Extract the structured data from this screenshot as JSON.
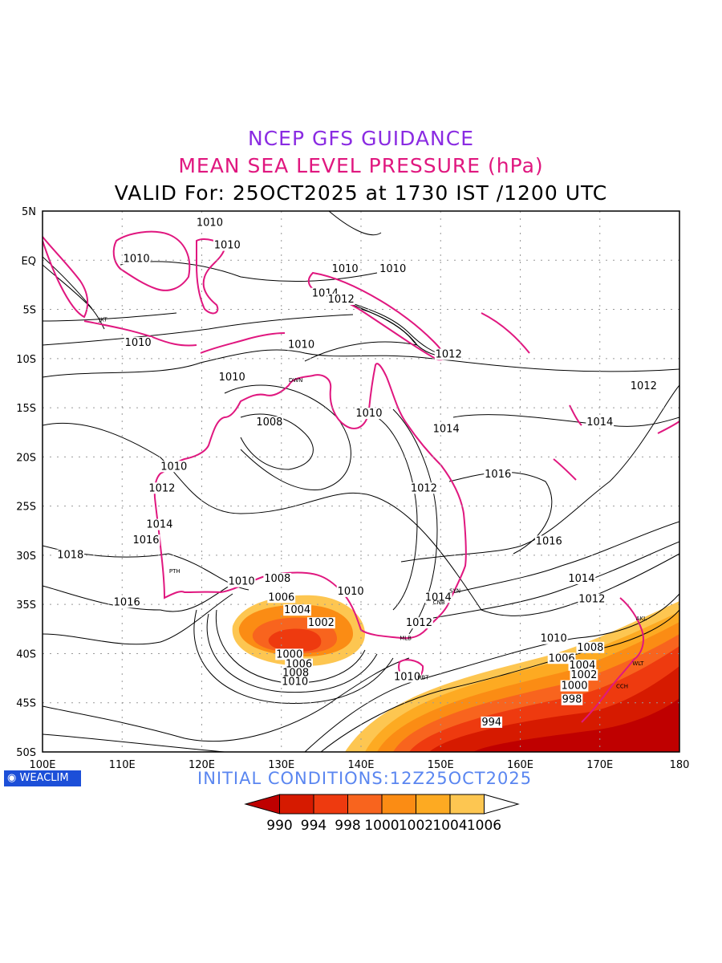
{
  "header": {
    "title": "NCEP GFS GUIDANCE",
    "subtitle": "MEAN SEA LEVEL PRESSURE (hPa)",
    "valid_line": "VALID For: 25OCT2025 at 1730 IST /1200 UTC"
  },
  "colors": {
    "title": "#8a2be2",
    "subtitle": "#e0177f",
    "coast": "#e0177f",
    "init": "#5a86f0",
    "badge": "#1c4fd8",
    "fills": [
      "#bf0000",
      "#d61a00",
      "#ee3a0f",
      "#f8641e",
      "#fb8c14",
      "#fdaa22",
      "#fdc651",
      "#ffffff"
    ]
  },
  "axes": {
    "lat_labels": [
      "5N",
      "EQ",
      "5S",
      "10S",
      "15S",
      "20S",
      "25S",
      "30S",
      "35S",
      "40S",
      "45S",
      "50S"
    ],
    "lon_labels": [
      "100E",
      "110E",
      "120E",
      "130E",
      "140E",
      "150E",
      "160E",
      "170E",
      "180"
    ]
  },
  "contour_labels": [
    {
      "text": "1010",
      "lon": 121.0,
      "lat": 3.5
    },
    {
      "text": "1010",
      "lon": 123.2,
      "lat": 1.2
    },
    {
      "text": "1010",
      "lon": 111.8,
      "lat": -0.2
    },
    {
      "text": "1010",
      "lon": 144.0,
      "lat": -1.2
    },
    {
      "text": "1010",
      "lon": 138.0,
      "lat": -1.2
    },
    {
      "text": "1014",
      "lon": 135.5,
      "lat": -3.7
    },
    {
      "text": "1012",
      "lon": 137.5,
      "lat": -4.3
    },
    {
      "text": "1010",
      "lon": 112.0,
      "lat": -8.7
    },
    {
      "text": "1010",
      "lon": 132.5,
      "lat": -8.9
    },
    {
      "text": "1012",
      "lon": 151.0,
      "lat": -9.9
    },
    {
      "text": "1010",
      "lon": 123.8,
      "lat": -12.2
    },
    {
      "text": "1012",
      "lon": 175.5,
      "lat": -13.1
    },
    {
      "text": "1010",
      "lon": 141.0,
      "lat": -15.9
    },
    {
      "text": "1008",
      "lon": 128.5,
      "lat": -16.8
    },
    {
      "text": "1014",
      "lon": 170.0,
      "lat": -16.8
    },
    {
      "text": "1014",
      "lon": 150.7,
      "lat": -17.5
    },
    {
      "text": "1010",
      "lon": 116.5,
      "lat": -21.3
    },
    {
      "text": "1016",
      "lon": 157.2,
      "lat": -22.1
    },
    {
      "text": "1012",
      "lon": 115.0,
      "lat": -23.5
    },
    {
      "text": "1012",
      "lon": 147.9,
      "lat": -23.5
    },
    {
      "text": "1014",
      "lon": 114.7,
      "lat": -27.2
    },
    {
      "text": "1016",
      "lon": 113.0,
      "lat": -28.8
    },
    {
      "text": "1016",
      "lon": 163.6,
      "lat": -28.9
    },
    {
      "text": "1018",
      "lon": 103.5,
      "lat": -30.3
    },
    {
      "text": "1008",
      "lon": 129.5,
      "lat": -32.7
    },
    {
      "text": "1010",
      "lon": 125.0,
      "lat": -33.0
    },
    {
      "text": "1014",
      "lon": 167.7,
      "lat": -32.7
    },
    {
      "text": "1010",
      "lon": 138.7,
      "lat": -34.0
    },
    {
      "text": "1006",
      "lon": 130.0,
      "lat": -34.6
    },
    {
      "text": "1014",
      "lon": 149.7,
      "lat": -34.6
    },
    {
      "text": "1016",
      "lon": 110.6,
      "lat": -35.1
    },
    {
      "text": "1012",
      "lon": 169.0,
      "lat": -34.8
    },
    {
      "text": "1004",
      "lon": 132.0,
      "lat": -35.9
    },
    {
      "text": "1002",
      "lon": 135.0,
      "lat": -37.2
    },
    {
      "text": "1012",
      "lon": 147.3,
      "lat": -37.2
    },
    {
      "text": "1010",
      "lon": 164.2,
      "lat": -38.8
    },
    {
      "text": "1008",
      "lon": 168.8,
      "lat": -39.7
    },
    {
      "text": "1000",
      "lon": 131.0,
      "lat": -40.4
    },
    {
      "text": "1006",
      "lon": 165.2,
      "lat": -40.8
    },
    {
      "text": "1006",
      "lon": 132.2,
      "lat": -41.4
    },
    {
      "text": "1004",
      "lon": 167.8,
      "lat": -41.5
    },
    {
      "text": "1008",
      "lon": 131.8,
      "lat": -42.3
    },
    {
      "text": "1002",
      "lon": 168.0,
      "lat": -42.5
    },
    {
      "text": "1010",
      "lon": 131.7,
      "lat": -43.2
    },
    {
      "text": "1010",
      "lon": 145.8,
      "lat": -42.7
    },
    {
      "text": "1000",
      "lon": 166.8,
      "lat": -43.6
    },
    {
      "text": "998",
      "lon": 166.5,
      "lat": -45.0
    },
    {
      "text": "994",
      "lon": 156.4,
      "lat": -47.3
    }
  ],
  "stations": [
    {
      "text": "JKT",
      "lon": 107.6,
      "lat": -6.2
    },
    {
      "text": "DWN",
      "lon": 131.8,
      "lat": -12.4
    },
    {
      "text": "PTH",
      "lon": 116.6,
      "lat": -31.8
    },
    {
      "text": "SYN",
      "lon": 151.8,
      "lat": -33.8
    },
    {
      "text": "CNB",
      "lon": 149.8,
      "lat": -35.0
    },
    {
      "text": "MLB",
      "lon": 145.6,
      "lat": -38.6
    },
    {
      "text": "HBT",
      "lon": 147.8,
      "lat": -42.6
    },
    {
      "text": "AKL",
      "lon": 175.2,
      "lat": -36.6
    },
    {
      "text": "WLT",
      "lon": 174.8,
      "lat": -41.2
    },
    {
      "text": "CCH",
      "lon": 172.8,
      "lat": -43.5
    }
  ],
  "legend": {
    "values": [
      "990",
      "994",
      "998",
      "1000",
      "1002",
      "1004",
      "1006"
    ]
  },
  "footer": {
    "logo": "WEACLIM",
    "initial_conditions": "INITIAL  CONDITIONS:12Z25OCT2025"
  }
}
